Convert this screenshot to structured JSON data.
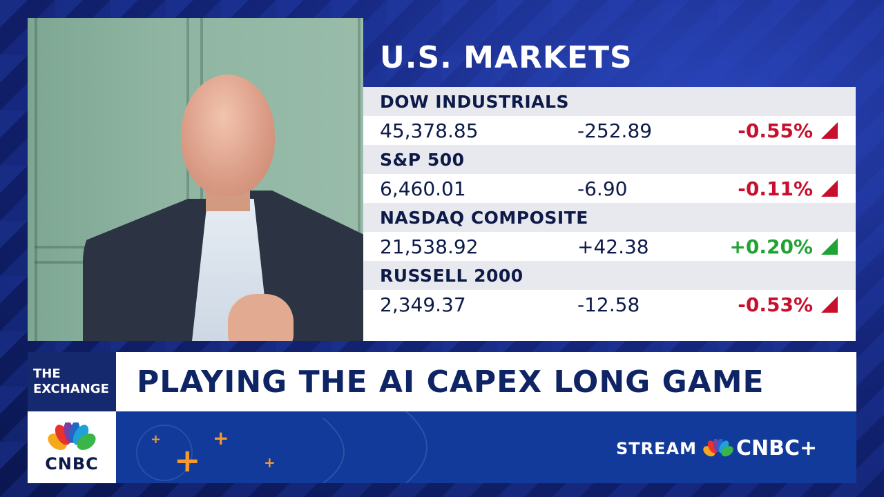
{
  "markets": {
    "title": "U.S. MARKETS",
    "indices": [
      {
        "name": "DOW INDUSTRIALS",
        "last": "45,378.85",
        "change": "-252.89",
        "percent": "-0.55%",
        "direction": "down"
      },
      {
        "name": "S&P 500",
        "last": "6,460.01",
        "change": "-6.90",
        "percent": "-0.11%",
        "direction": "down"
      },
      {
        "name": "NASDAQ COMPOSITE",
        "last": "21,538.92",
        "change": "+42.38",
        "percent": "+0.20%",
        "direction": "up"
      },
      {
        "name": "RUSSELL 2000",
        "last": "2,349.37",
        "change": "-12.58",
        "percent": "-0.53%",
        "direction": "down"
      }
    ]
  },
  "lower_third": {
    "show_line1": "THE",
    "show_line2": "EXCHANGE",
    "headline": "PLAYING THE AI CAPEX LONG GAME"
  },
  "branding": {
    "network_logo_text": "CNBC",
    "stream_label": "STREAM",
    "stream_brand": "CNBC+",
    "logo_icon": "peacock-icon"
  },
  "colors": {
    "negative": "#c8102e",
    "positive": "#1fa334",
    "navy": "#0f2464"
  }
}
